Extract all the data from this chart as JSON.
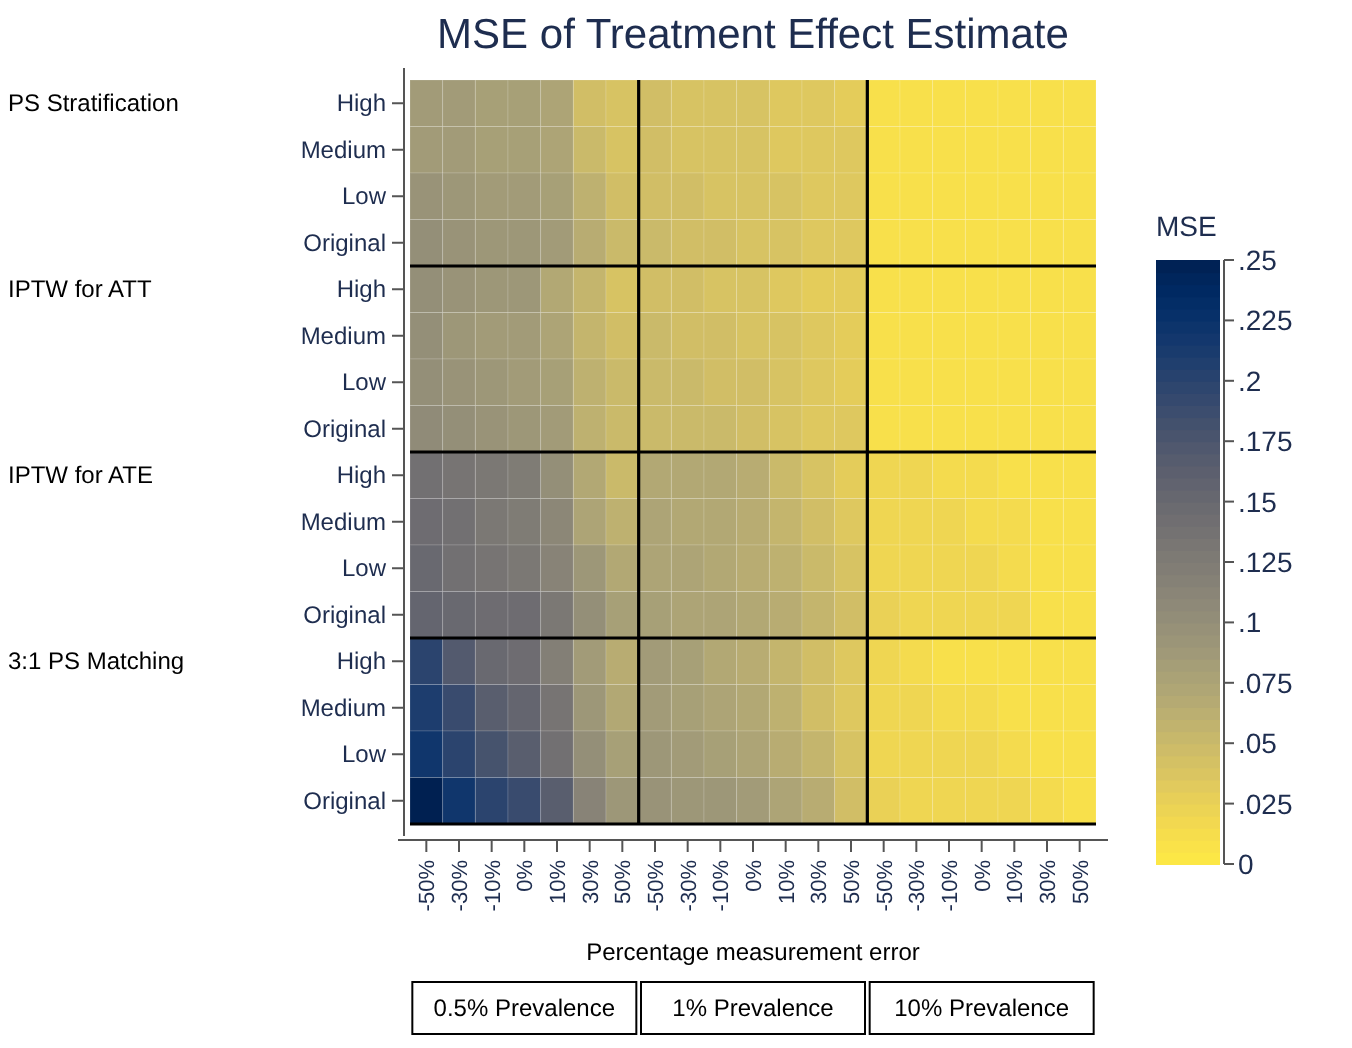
{
  "chart_data": {
    "type": "heatmap",
    "title": "MSE of Treatment Effect Estimate",
    "xlabel": "Percentage measurement error",
    "clabel": "MSE",
    "categories": [
      "-50%",
      "-30%",
      "-10%",
      "0%",
      "10%",
      "30%",
      "50%",
      "-50%",
      "-30%",
      "-10%",
      "0%",
      "10%",
      "30%",
      "50%",
      "-50%",
      "-30%",
      "-10%",
      "0%",
      "10%",
      "30%",
      "50%"
    ],
    "y_categories": [
      "High",
      "Medium",
      "Low",
      "Original",
      "High",
      "Medium",
      "Low",
      "Original",
      "High",
      "Medium",
      "Low",
      "Original",
      "High",
      "Medium",
      "Low",
      "Original"
    ],
    "annotations": [
      "PS Stratification",
      "IPTW for ATT",
      "IPTW for ATE",
      "3:1 PS Matching",
      "0.5% Prevalence",
      "1% Prevalence",
      "10% Prevalence"
    ],
    "cells": [
      [
        0.085,
        0.085,
        0.08,
        0.08,
        0.075,
        0.045,
        0.04,
        0.045,
        0.04,
        0.04,
        0.04,
        0.035,
        0.035,
        0.03,
        0.01,
        0.01,
        0.01,
        0.01,
        0.01,
        0.01,
        0.01
      ],
      [
        0.085,
        0.085,
        0.08,
        0.08,
        0.075,
        0.05,
        0.04,
        0.045,
        0.04,
        0.04,
        0.04,
        0.035,
        0.035,
        0.035,
        0.01,
        0.01,
        0.01,
        0.01,
        0.01,
        0.01,
        0.01
      ],
      [
        0.095,
        0.09,
        0.085,
        0.085,
        0.08,
        0.06,
        0.045,
        0.045,
        0.045,
        0.04,
        0.04,
        0.04,
        0.035,
        0.035,
        0.01,
        0.01,
        0.01,
        0.01,
        0.01,
        0.01,
        0.01
      ],
      [
        0.1,
        0.095,
        0.09,
        0.09,
        0.085,
        0.065,
        0.05,
        0.05,
        0.045,
        0.045,
        0.04,
        0.04,
        0.035,
        0.035,
        0.01,
        0.01,
        0.01,
        0.01,
        0.01,
        0.01,
        0.01
      ],
      [
        0.1,
        0.095,
        0.09,
        0.09,
        0.07,
        0.055,
        0.04,
        0.045,
        0.045,
        0.04,
        0.04,
        0.035,
        0.03,
        0.03,
        0.01,
        0.01,
        0.01,
        0.01,
        0.01,
        0.01,
        0.01
      ],
      [
        0.1,
        0.09,
        0.085,
        0.085,
        0.075,
        0.055,
        0.045,
        0.05,
        0.045,
        0.045,
        0.04,
        0.04,
        0.035,
        0.03,
        0.01,
        0.01,
        0.01,
        0.01,
        0.01,
        0.01,
        0.01
      ],
      [
        0.1,
        0.095,
        0.09,
        0.085,
        0.08,
        0.06,
        0.05,
        0.05,
        0.05,
        0.045,
        0.045,
        0.04,
        0.035,
        0.03,
        0.01,
        0.01,
        0.01,
        0.01,
        0.01,
        0.01,
        0.01
      ],
      [
        0.105,
        0.1,
        0.095,
        0.09,
        0.085,
        0.06,
        0.05,
        0.05,
        0.05,
        0.05,
        0.045,
        0.04,
        0.035,
        0.035,
        0.01,
        0.01,
        0.01,
        0.01,
        0.01,
        0.01,
        0.01
      ],
      [
        0.14,
        0.135,
        0.13,
        0.125,
        0.1,
        0.07,
        0.05,
        0.07,
        0.07,
        0.07,
        0.065,
        0.05,
        0.04,
        0.03,
        0.02,
        0.02,
        0.015,
        0.015,
        0.01,
        0.01,
        0.01
      ],
      [
        0.145,
        0.14,
        0.13,
        0.125,
        0.11,
        0.075,
        0.06,
        0.075,
        0.07,
        0.07,
        0.065,
        0.055,
        0.045,
        0.035,
        0.02,
        0.02,
        0.02,
        0.015,
        0.015,
        0.01,
        0.01
      ],
      [
        0.15,
        0.14,
        0.135,
        0.13,
        0.115,
        0.09,
        0.07,
        0.075,
        0.075,
        0.07,
        0.065,
        0.06,
        0.05,
        0.04,
        0.02,
        0.02,
        0.02,
        0.02,
        0.015,
        0.01,
        0.01
      ],
      [
        0.155,
        0.15,
        0.145,
        0.145,
        0.13,
        0.1,
        0.08,
        0.08,
        0.075,
        0.075,
        0.07,
        0.065,
        0.055,
        0.045,
        0.025,
        0.02,
        0.02,
        0.02,
        0.02,
        0.01,
        0.01
      ],
      [
        0.2,
        0.17,
        0.15,
        0.145,
        0.12,
        0.085,
        0.065,
        0.085,
        0.08,
        0.07,
        0.065,
        0.055,
        0.045,
        0.035,
        0.02,
        0.015,
        0.01,
        0.01,
        0.01,
        0.01,
        0.01
      ],
      [
        0.21,
        0.19,
        0.165,
        0.155,
        0.135,
        0.09,
        0.07,
        0.085,
        0.08,
        0.075,
        0.07,
        0.06,
        0.045,
        0.035,
        0.02,
        0.02,
        0.015,
        0.015,
        0.01,
        0.01,
        0.01
      ],
      [
        0.22,
        0.2,
        0.18,
        0.165,
        0.14,
        0.1,
        0.08,
        0.09,
        0.085,
        0.08,
        0.075,
        0.065,
        0.055,
        0.04,
        0.02,
        0.02,
        0.02,
        0.02,
        0.015,
        0.01,
        0.01
      ],
      [
        0.25,
        0.22,
        0.2,
        0.19,
        0.165,
        0.115,
        0.09,
        0.095,
        0.09,
        0.09,
        0.085,
        0.075,
        0.065,
        0.045,
        0.025,
        0.02,
        0.02,
        0.02,
        0.02,
        0.015,
        0.01
      ]
    ],
    "clim": [
      0,
      0.25
    ],
    "cticks": [
      {
        "value": 0,
        "label": "0"
      },
      {
        "value": 0.025,
        "label": ".025"
      },
      {
        "value": 0.05,
        "label": ".05"
      },
      {
        "value": 0.075,
        "label": ".075"
      },
      {
        "value": 0.1,
        "label": ".1"
      },
      {
        "value": 0.125,
        "label": ".125"
      },
      {
        "value": 0.15,
        "label": ".15"
      },
      {
        "value": 0.175,
        "label": ".175"
      },
      {
        "value": 0.2,
        "label": ".2"
      },
      {
        "value": 0.225,
        "label": ".225"
      },
      {
        "value": 0.25,
        "label": ".25"
      }
    ]
  }
}
